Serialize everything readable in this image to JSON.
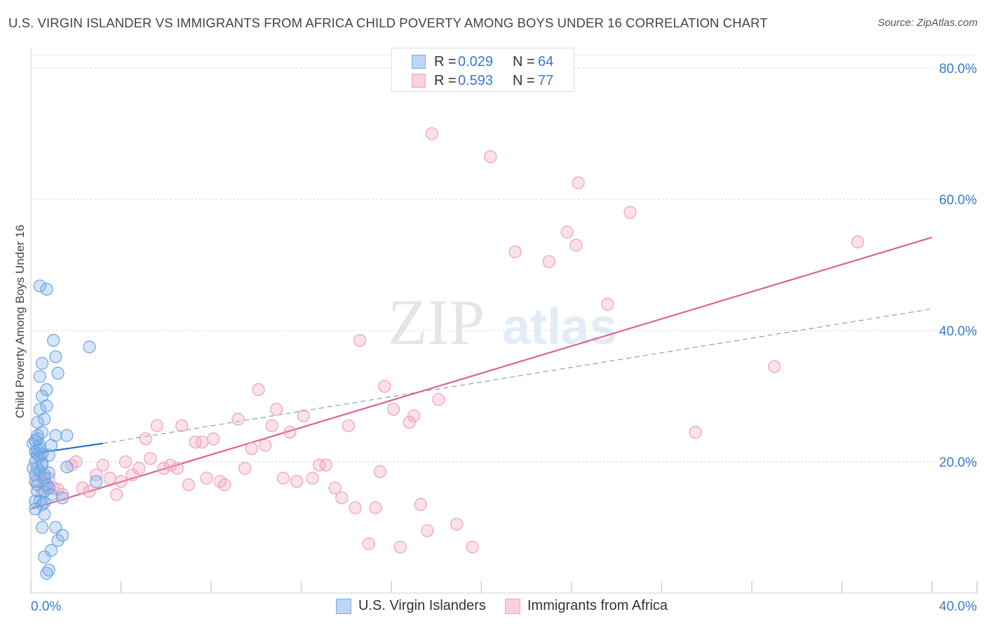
{
  "header": {
    "title": "U.S. VIRGIN ISLANDER VS IMMIGRANTS FROM AFRICA CHILD POVERTY AMONG BOYS UNDER 16 CORRELATION CHART",
    "source": "Source: ZipAtlas.com"
  },
  "watermark": {
    "zip": "ZIP",
    "atlas": "atlas"
  },
  "legend": {
    "rows": [
      {
        "r_label": "R =",
        "r_value": "0.029",
        "n_label": "N =",
        "n_value": "64",
        "color": "#7aaee8"
      },
      {
        "r_label": "R =",
        "r_value": "0.593",
        "n_label": "N =",
        "n_value": "77",
        "color": "#f4a2bc"
      }
    ]
  },
  "bottom_legend": {
    "items": [
      {
        "label": "U.S. Virgin Islanders",
        "color": "#7aaee8"
      },
      {
        "label": "Immigrants from Africa",
        "color": "#f4a2bc"
      }
    ]
  },
  "chart_data": {
    "type": "scatter",
    "title": "U.S. VIRGIN ISLANDER VS IMMIGRANTS FROM AFRICA CHILD POVERTY AMONG BOYS UNDER 16 CORRELATION CHART",
    "xlabel": "",
    "ylabel": "Child Poverty Among Boys Under 16",
    "xlim": [
      0,
      40
    ],
    "ylim": [
      0,
      80
    ],
    "x_tick_labels": [
      "0.0%",
      "40.0%"
    ],
    "y_ticks": [
      20,
      40,
      60,
      80
    ],
    "y_tick_labels": [
      "20.0%",
      "40.0%",
      "60.0%",
      "80.0%"
    ],
    "grid": true,
    "series": [
      {
        "name": "U.S. Virgin Islanders",
        "color": "#7aaee8",
        "line_color": "#1f6fd6",
        "R": 0.029,
        "N": 64,
        "trend_solid": [
          [
            0,
            21.2
          ],
          [
            3.2,
            22.8
          ]
        ],
        "trend_dashed": [
          [
            3.2,
            22.8
          ],
          [
            40,
            43.3
          ]
        ],
        "points": [
          [
            0.1,
            22.8
          ],
          [
            0.2,
            21.5
          ],
          [
            0.2,
            23.2
          ],
          [
            0.3,
            24.0
          ],
          [
            0.3,
            21.0
          ],
          [
            0.4,
            22.5
          ],
          [
            0.4,
            20.8
          ],
          [
            0.5,
            21.2
          ],
          [
            0.2,
            18.0
          ],
          [
            0.3,
            19.0
          ],
          [
            0.4,
            18.5
          ],
          [
            0.5,
            19.5
          ],
          [
            0.6,
            18.0
          ],
          [
            0.2,
            17.0
          ],
          [
            0.3,
            16.5
          ],
          [
            0.4,
            14.0
          ],
          [
            0.5,
            13.5
          ],
          [
            0.6,
            15.5
          ],
          [
            0.7,
            16.5
          ],
          [
            0.8,
            16.0
          ],
          [
            0.3,
            26.0
          ],
          [
            0.4,
            28.0
          ],
          [
            0.5,
            30.0
          ],
          [
            0.4,
            33.0
          ],
          [
            0.5,
            35.0
          ],
          [
            0.7,
            31.0
          ],
          [
            0.7,
            28.5
          ],
          [
            0.6,
            26.5
          ],
          [
            0.4,
            46.8
          ],
          [
            0.7,
            46.3
          ],
          [
            1.0,
            38.5
          ],
          [
            1.1,
            36.0
          ],
          [
            1.2,
            33.5
          ],
          [
            0.8,
            21.0
          ],
          [
            0.9,
            22.5
          ],
          [
            1.1,
            24.0
          ],
          [
            1.6,
            24.0
          ],
          [
            1.6,
            19.2
          ],
          [
            0.5,
            10.0
          ],
          [
            0.6,
            12.0
          ],
          [
            0.6,
            5.5
          ],
          [
            0.7,
            3.0
          ],
          [
            0.8,
            3.5
          ],
          [
            0.9,
            6.5
          ],
          [
            1.1,
            10.0
          ],
          [
            1.2,
            8.0
          ],
          [
            1.4,
            8.8
          ],
          [
            1.4,
            14.5
          ],
          [
            2.6,
            37.5
          ],
          [
            2.9,
            17.0
          ],
          [
            0.2,
            14.0
          ],
          [
            0.1,
            19.0
          ],
          [
            0.2,
            20.0
          ],
          [
            0.3,
            21.8
          ],
          [
            0.4,
            22.0
          ],
          [
            0.5,
            19.8
          ],
          [
            0.6,
            17.5
          ],
          [
            0.3,
            15.5
          ],
          [
            0.8,
            18.3
          ],
          [
            0.9,
            15.0
          ],
          [
            0.3,
            23.5
          ],
          [
            0.5,
            24.5
          ],
          [
            0.6,
            13.8
          ],
          [
            0.2,
            12.8
          ]
        ]
      },
      {
        "name": "Immigrants from Africa",
        "color": "#f4a2bc",
        "line_color": "#e0628e",
        "R": 0.593,
        "N": 77,
        "trend": [
          [
            0,
            12.8
          ],
          [
            40,
            54.2
          ]
        ],
        "points": [
          [
            0.3,
            17.0
          ],
          [
            0.5,
            15.5
          ],
          [
            0.6,
            16.5
          ],
          [
            0.8,
            17.5
          ],
          [
            1.0,
            16.0
          ],
          [
            1.2,
            15.8
          ],
          [
            1.4,
            15.0
          ],
          [
            1.8,
            19.5
          ],
          [
            2.0,
            20.0
          ],
          [
            2.3,
            16.0
          ],
          [
            2.6,
            15.5
          ],
          [
            2.9,
            18.0
          ],
          [
            3.2,
            19.5
          ],
          [
            3.5,
            17.5
          ],
          [
            3.8,
            15.0
          ],
          [
            4.0,
            17.0
          ],
          [
            4.2,
            20.0
          ],
          [
            4.5,
            18.0
          ],
          [
            4.8,
            19.0
          ],
          [
            5.1,
            23.5
          ],
          [
            5.3,
            20.5
          ],
          [
            5.6,
            25.5
          ],
          [
            5.9,
            19.0
          ],
          [
            6.2,
            19.5
          ],
          [
            6.5,
            19.0
          ],
          [
            6.7,
            25.5
          ],
          [
            7.0,
            16.5
          ],
          [
            7.3,
            23.0
          ],
          [
            7.6,
            23.0
          ],
          [
            7.8,
            17.5
          ],
          [
            8.1,
            23.5
          ],
          [
            8.4,
            17.0
          ],
          [
            8.6,
            16.5
          ],
          [
            9.2,
            26.5
          ],
          [
            9.5,
            19.0
          ],
          [
            9.8,
            22.0
          ],
          [
            10.1,
            31.0
          ],
          [
            10.4,
            22.5
          ],
          [
            10.7,
            25.5
          ],
          [
            10.9,
            28.0
          ],
          [
            11.2,
            17.5
          ],
          [
            11.5,
            24.5
          ],
          [
            11.8,
            17.0
          ],
          [
            12.1,
            27.0
          ],
          [
            12.5,
            17.5
          ],
          [
            12.8,
            19.5
          ],
          [
            13.1,
            19.5
          ],
          [
            13.5,
            16.0
          ],
          [
            13.8,
            14.5
          ],
          [
            14.1,
            25.5
          ],
          [
            14.4,
            13.0
          ],
          [
            14.6,
            38.5
          ],
          [
            15.0,
            7.5
          ],
          [
            15.3,
            13.0
          ],
          [
            15.5,
            18.5
          ],
          [
            15.7,
            31.5
          ],
          [
            16.1,
            28.0
          ],
          [
            16.4,
            7.0
          ],
          [
            16.8,
            26.0
          ],
          [
            17.0,
            27.0
          ],
          [
            17.3,
            13.5
          ],
          [
            17.6,
            9.5
          ],
          [
            17.8,
            70.0
          ],
          [
            18.1,
            29.5
          ],
          [
            18.9,
            10.5
          ],
          [
            19.6,
            7.0
          ],
          [
            20.4,
            66.5
          ],
          [
            21.5,
            52.0
          ],
          [
            23.0,
            50.5
          ],
          [
            23.8,
            55.0
          ],
          [
            24.2,
            53.0
          ],
          [
            24.3,
            62.5
          ],
          [
            25.6,
            44.0
          ],
          [
            26.6,
            58.0
          ],
          [
            29.5,
            24.5
          ],
          [
            33.0,
            34.5
          ],
          [
            36.7,
            53.5
          ]
        ]
      }
    ]
  }
}
